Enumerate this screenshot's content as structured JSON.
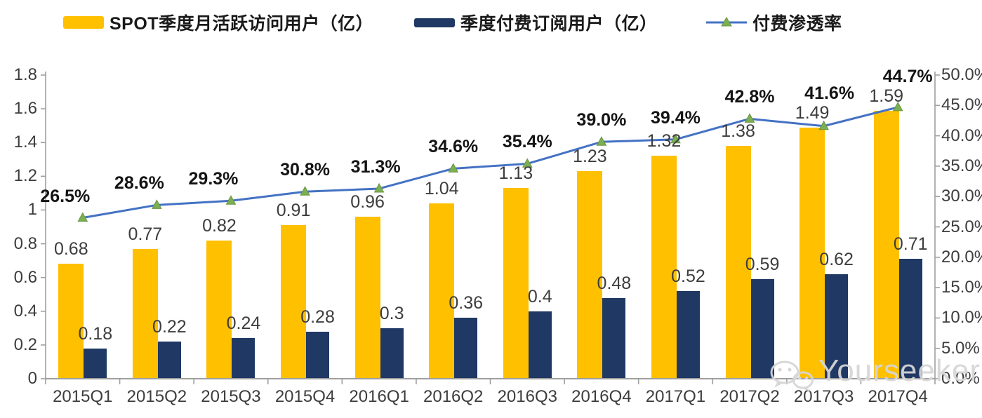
{
  "legend": {
    "items": [
      {
        "label": "SPOT季度月活跃访问用户（亿）",
        "swatch": "bar",
        "color": "#FFC000"
      },
      {
        "label": "季度付费订阅用户（亿）",
        "swatch": "bar",
        "color": "#1F3864"
      },
      {
        "label": "付费渗透率",
        "swatch": "line",
        "color": "#4472C4",
        "marker_color": "#7CAE52"
      }
    ]
  },
  "chart_data": {
    "type": "bar+line combo",
    "legend_position": "top",
    "grid": "off",
    "categories": [
      "2015Q1",
      "2015Q2",
      "2015Q3",
      "2015Q4",
      "2016Q1",
      "2016Q2",
      "2016Q3",
      "2016Q4",
      "2017Q1",
      "2017Q2",
      "2017Q3",
      "2017Q4"
    ],
    "series": [
      {
        "name": "SPOT季度月活跃访问用户（亿）",
        "type": "bar",
        "axis": "left",
        "color": "#FFC000",
        "values": [
          0.68,
          0.77,
          0.82,
          0.91,
          0.96,
          1.04,
          1.13,
          1.23,
          1.32,
          1.38,
          1.49,
          1.59
        ],
        "labels": [
          "0.68",
          "0.77",
          "0.82",
          "0.91",
          "0.96",
          "1.04",
          "1.13",
          "1.23",
          "1.32",
          "1.38",
          "1.49",
          "1.59"
        ]
      },
      {
        "name": "季度付费订阅用户（亿）",
        "type": "bar",
        "axis": "left",
        "color": "#1F3864",
        "values": [
          0.18,
          0.22,
          0.24,
          0.28,
          0.3,
          0.36,
          0.4,
          0.48,
          0.52,
          0.59,
          0.62,
          0.71
        ],
        "labels": [
          "0.18",
          "0.22",
          "0.24",
          "0.28",
          "0.3",
          "0.36",
          "0.4",
          "0.48",
          "0.52",
          "0.59",
          "0.62",
          "0.71"
        ]
      },
      {
        "name": "付费渗透率",
        "type": "line",
        "axis": "right",
        "color": "#4472C4",
        "marker_color": "#7CAE52",
        "values": [
          26.5,
          28.6,
          29.3,
          30.8,
          31.3,
          34.6,
          35.4,
          39.0,
          39.4,
          42.8,
          41.6,
          44.7
        ],
        "labels": [
          "26.5%",
          "28.6%",
          "29.3%",
          "30.8%",
          "31.3%",
          "34.6%",
          "35.4%",
          "39.0%",
          "39.4%",
          "42.8%",
          "41.6%",
          "44.7%"
        ]
      }
    ],
    "left_axis": {
      "min": 0,
      "max": 1.8,
      "ticks": [
        "0",
        "0.2",
        "0.4",
        "0.6",
        "0.8",
        "1",
        "1.2",
        "1.4",
        "1.6",
        "1.8"
      ]
    },
    "right_axis": {
      "min": 0,
      "max": 50,
      "ticks": [
        "0.0%",
        "5.0%",
        "10.0%",
        "15.0%",
        "20.0%",
        "25.0%",
        "30.0%",
        "35.0%",
        "40.0%",
        "45.0%",
        "50.0%"
      ]
    }
  },
  "watermark": {
    "text": "Yourseeker",
    "icon": "wechat-icon"
  }
}
